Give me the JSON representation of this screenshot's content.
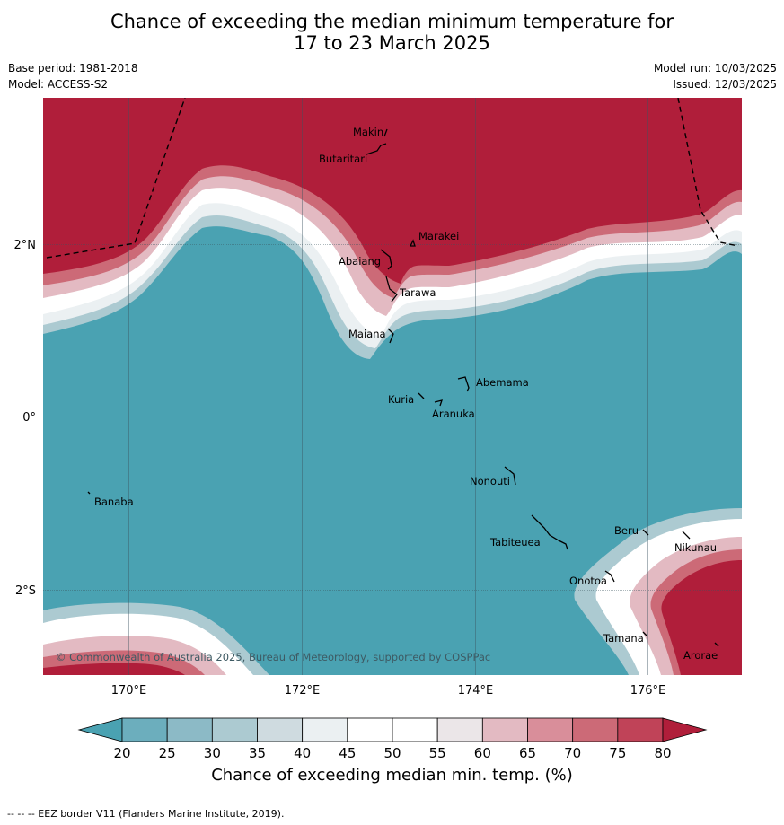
{
  "title": {
    "line1": "Chance of exceeding the median minimum temperature for",
    "line2": "17 to 23 March 2025"
  },
  "meta": {
    "base_period": "Base period: 1981-2018",
    "model": "Model: ACCESS-S2",
    "model_run": "Model run: 10/03/2025",
    "issued": "Issued: 12/03/2025"
  },
  "map": {
    "lat_labels": [
      "2°N",
      "0°",
      "2°S"
    ],
    "lon_labels": [
      "170°E",
      "172°E",
      "174°E",
      "176°E"
    ],
    "copyright": "© Commonwealth of Australia 2025, Bureau of Meteorology, supported by COSPPac",
    "islands": [
      "Makin",
      "Butaritari",
      "Marakei",
      "Abaiang",
      "Tarawa",
      "Maiana",
      "Abemama",
      "Kuria",
      "Aranuka",
      "Nonouti",
      "Banaba",
      "Beru",
      "Tabiteuea",
      "Nikunau",
      "Onotoa",
      "Tamana",
      "Arorae"
    ]
  },
  "colorbar": {
    "ticks": [
      "20",
      "25",
      "30",
      "35",
      "40",
      "45",
      "50",
      "55",
      "60",
      "65",
      "70",
      "75",
      "80"
    ],
    "colors": [
      "#4aa2b2",
      "#6caebd",
      "#8cbac6",
      "#accad1",
      "#cfdbe0",
      "#ebf0f2",
      "#ffffff",
      "#ffffff",
      "#ebe6e8",
      "#e3bac2",
      "#d98e9a",
      "#cc6a77",
      "#c04358",
      "#b01e3a"
    ],
    "label": "Chance of exceeding median min. temp. (%)"
  },
  "footer": "--  --  -- EEZ border V11 (Flanders Marine Institute, 2019)."
}
